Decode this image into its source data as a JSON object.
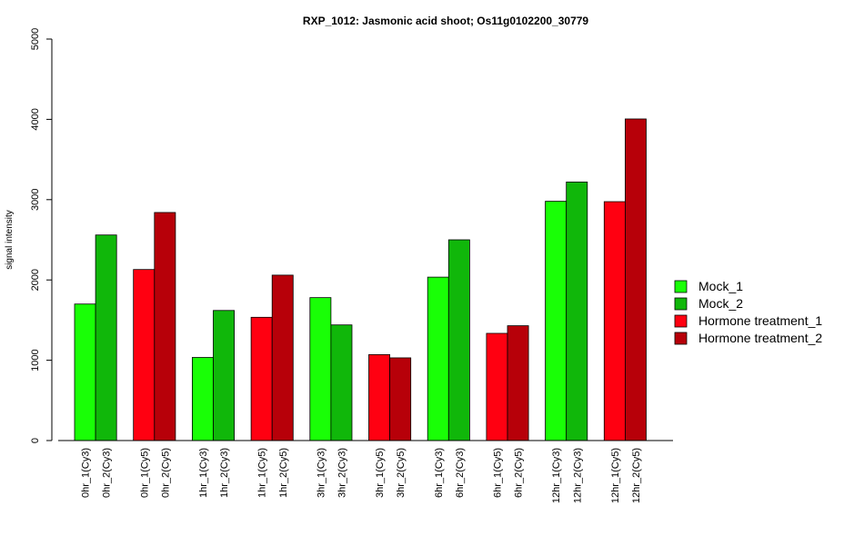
{
  "chart_data": {
    "type": "bar",
    "title": "RXP_1012: Jasmonic acid shoot; Os11g0102200_30779",
    "xlabel": "",
    "ylabel": "signal intensity",
    "ylim": [
      0,
      5000
    ],
    "yticks": [
      0,
      1000,
      2000,
      3000,
      4000,
      5000
    ],
    "categories": [
      "0hr_1(Cy3)",
      "0hr_2(Cy3)",
      "0hr_1(Cy5)",
      "0hr_2(Cy5)",
      "1hr_1(Cy3)",
      "1hr_2(Cy3)",
      "1hr_1(Cy5)",
      "1hr_2(Cy5)",
      "3hr_1(Cy3)",
      "3hr_2(Cy3)",
      "3hr_1(Cy5)",
      "3hr_2(Cy5)",
      "6hr_1(Cy3)",
      "6hr_2(Cy3)",
      "6hr_1(Cy5)",
      "6hr_2(Cy5)",
      "12hr_1(Cy3)",
      "12hr_2(Cy3)",
      "12hr_1(Cy5)",
      "12hr_2(Cy5)"
    ],
    "values": [
      1700,
      2560,
      2130,
      2840,
      1035,
      1620,
      1535,
      2060,
      1780,
      1440,
      1070,
      1030,
      2035,
      2500,
      1335,
      1430,
      2980,
      3220,
      2975,
      4005
    ],
    "bar_series": [
      0,
      1,
      2,
      3,
      0,
      1,
      2,
      3,
      0,
      1,
      2,
      3,
      0,
      1,
      2,
      3,
      0,
      1,
      2,
      3
    ],
    "series": [
      {
        "name": "Mock_1",
        "color": "#19ff06"
      },
      {
        "name": "Mock_2",
        "color": "#10b70a"
      },
      {
        "name": "Hormone treatment_1",
        "color": "#ff0011"
      },
      {
        "name": "Hormone treatment_2",
        "color": "#b70009"
      }
    ],
    "legend_position": "right",
    "grid": false
  }
}
